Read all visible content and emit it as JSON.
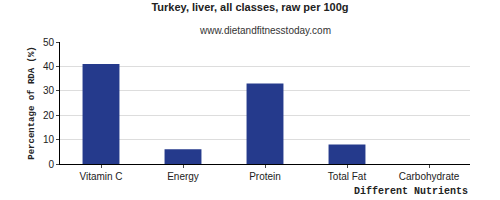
{
  "chart_data": {
    "type": "bar",
    "title": "Turkey, liver, all classes, raw per 100g",
    "subtitle": "www.dietandfitnesstoday.com",
    "x_label": "Different Nutrients",
    "y_label": "Percentage of RDA (%)",
    "categories": [
      "Vitamin C",
      "Energy",
      "Protein",
      "Total Fat",
      "Carbohydrate"
    ],
    "values": [
      41,
      6,
      33,
      8,
      0
    ],
    "color": "#253a8c",
    "ylim": [
      0,
      50
    ],
    "yticks": [
      0,
      10,
      20,
      30,
      40,
      50
    ],
    "grid": true
  }
}
